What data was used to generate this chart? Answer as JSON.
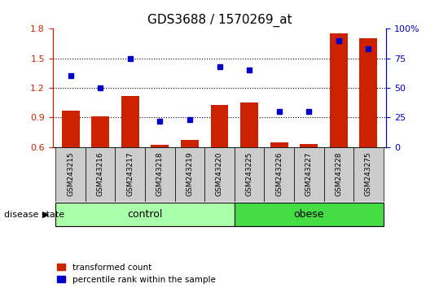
{
  "title": "GDS3688 / 1570269_at",
  "samples": [
    "GSM243215",
    "GSM243216",
    "GSM243217",
    "GSM243218",
    "GSM243219",
    "GSM243220",
    "GSM243225",
    "GSM243226",
    "GSM243227",
    "GSM243228",
    "GSM243275"
  ],
  "transformed_count": [
    0.97,
    0.91,
    1.12,
    0.62,
    0.67,
    1.03,
    1.05,
    0.645,
    0.63,
    1.75,
    1.7
  ],
  "percentile_rank": [
    60,
    50,
    75,
    22,
    23,
    68,
    65,
    30,
    30,
    90,
    83
  ],
  "groups": [
    {
      "label": "control",
      "indices": [
        0,
        1,
        2,
        3,
        4,
        5
      ],
      "color": "#AAFFAA"
    },
    {
      "label": "obese",
      "indices": [
        6,
        7,
        8,
        9,
        10
      ],
      "color": "#44DD44"
    }
  ],
  "ylim_left": [
    0.6,
    1.8
  ],
  "ylim_right": [
    0,
    100
  ],
  "yticks_left": [
    0.6,
    0.9,
    1.2,
    1.5,
    1.8
  ],
  "yticks_right": [
    0,
    25,
    50,
    75,
    100
  ],
  "bar_color": "#CC2200",
  "dot_color": "#0000CC",
  "tick_box_color": "#CCCCCC",
  "group_label": "disease state",
  "legend_items": [
    "transformed count",
    "percentile rank within the sample"
  ],
  "figsize": [
    5.39,
    3.54
  ],
  "dpi": 100
}
